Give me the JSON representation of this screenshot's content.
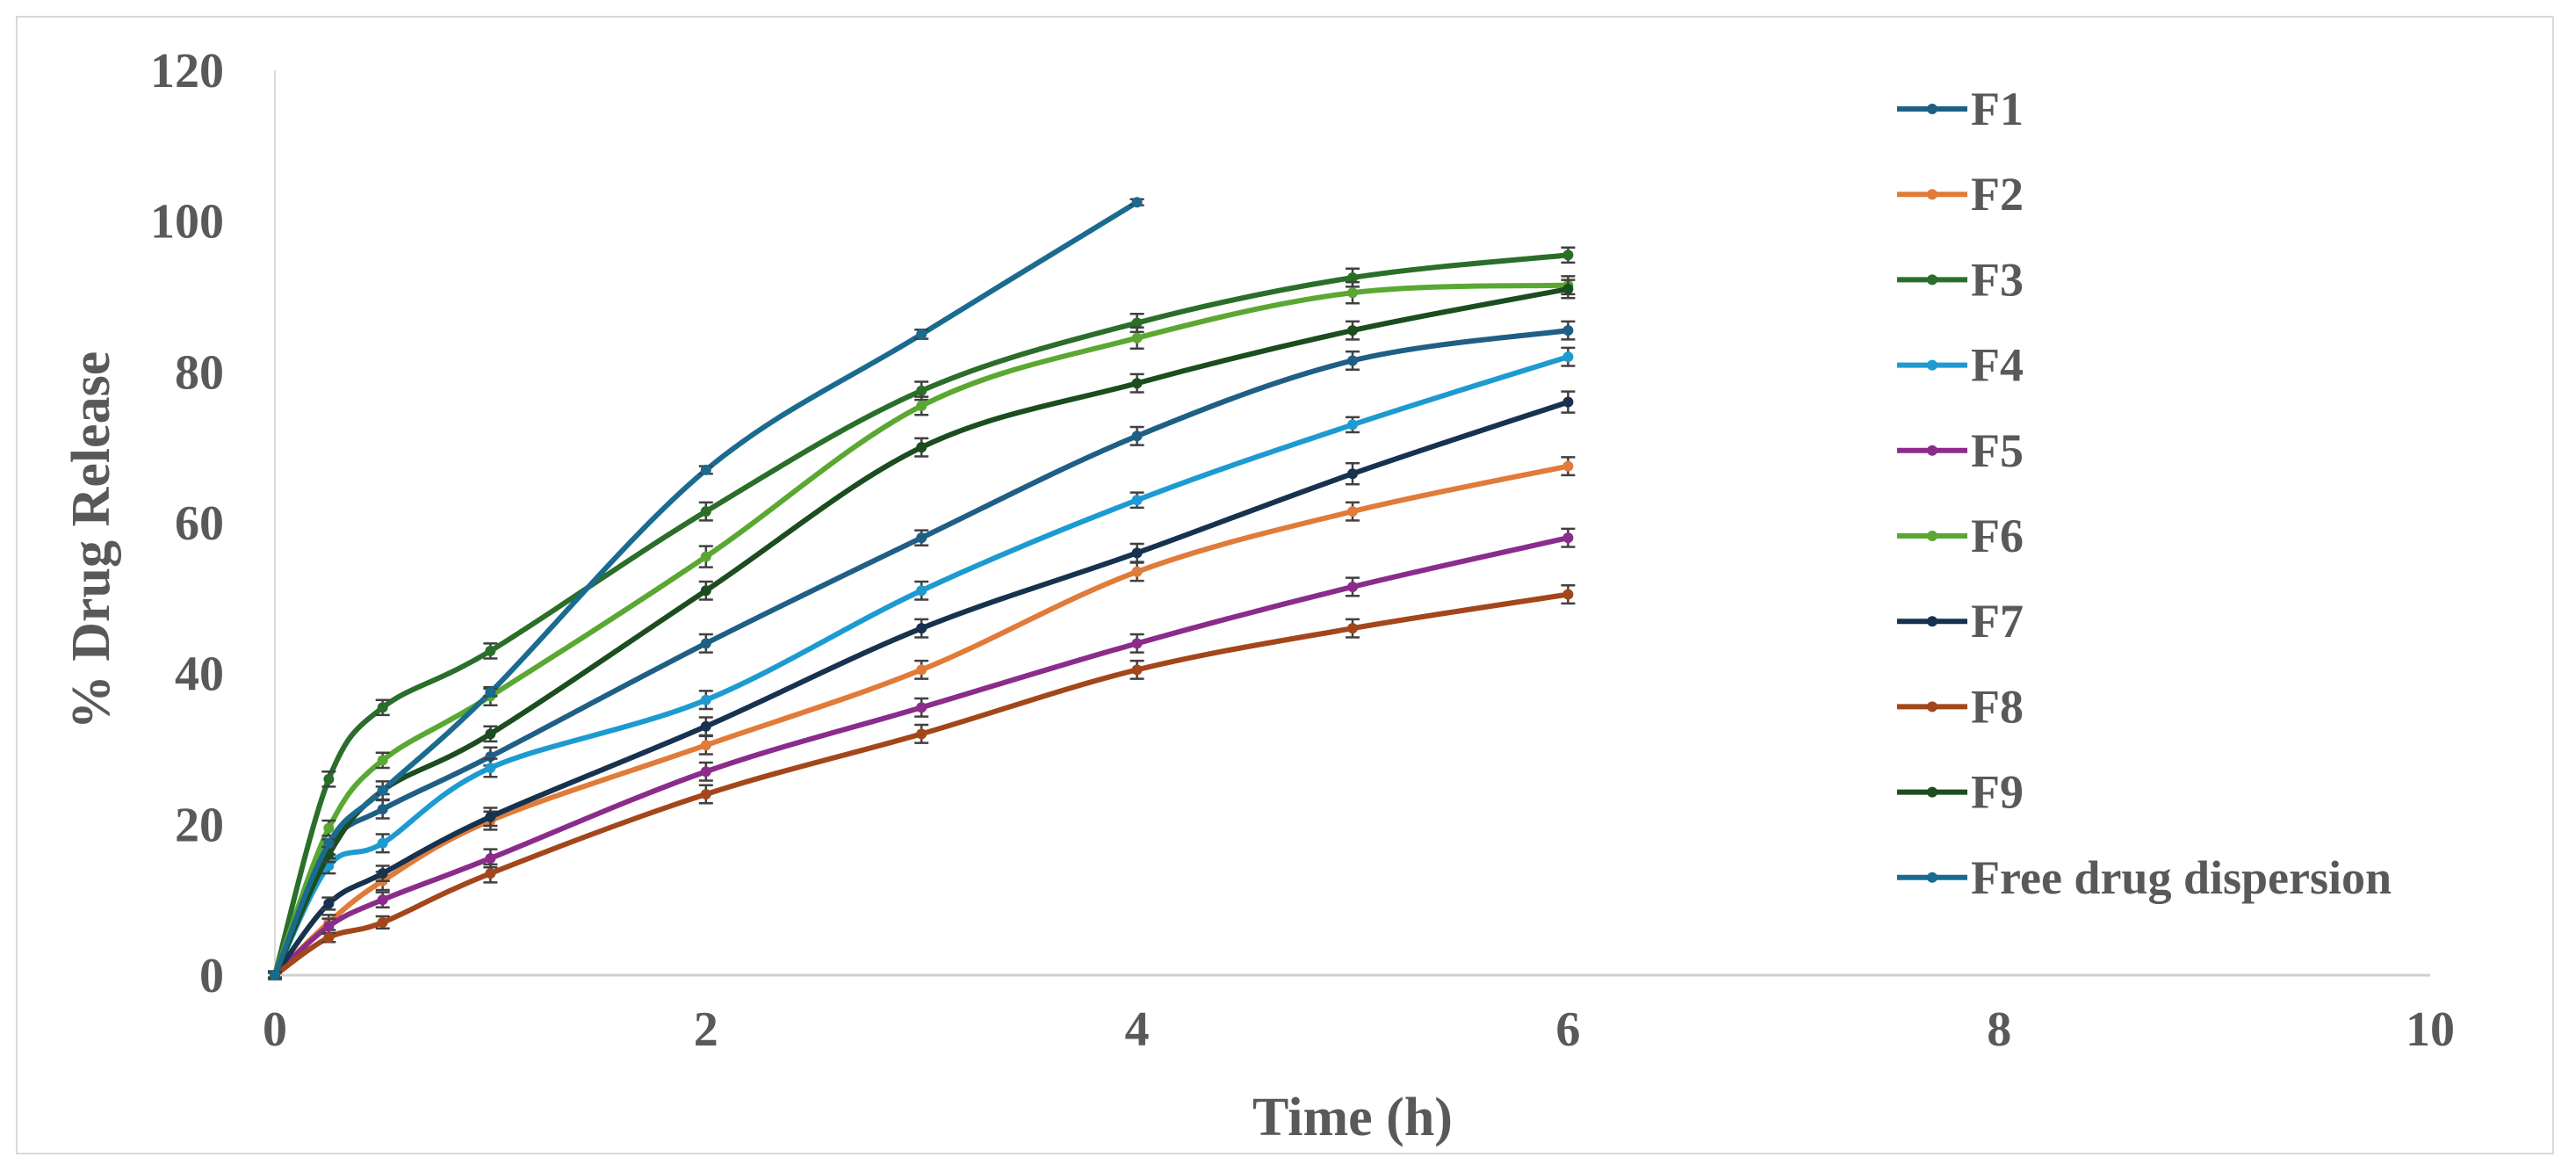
{
  "chart_data": {
    "type": "line",
    "title": "",
    "xlabel": "Time (h)",
    "ylabel": "% Drug Release",
    "xlim": [
      0,
      10
    ],
    "ylim": [
      0,
      120
    ],
    "x_ticks": [
      0,
      2,
      4,
      6,
      8,
      10
    ],
    "y_ticks": [
      0,
      20,
      40,
      60,
      80,
      100,
      120
    ],
    "x_tick_labels": [
      "0",
      "2",
      "4",
      "6",
      "8",
      "10"
    ],
    "y_tick_labels": [
      "0",
      "20",
      "40",
      "60",
      "80",
      "100",
      "120"
    ],
    "grid": false,
    "error_bars": true,
    "legend_position": "right",
    "series": [
      {
        "name": "F1",
        "color": "#1f5f85",
        "x": [
          0,
          0.25,
          0.5,
          1,
          2,
          3,
          4,
          5,
          6
        ],
        "y": [
          0,
          17,
          22,
          29,
          44,
          58,
          71.5,
          81.5,
          85.5
        ],
        "err": [
          0.5,
          1,
          1.2,
          1.2,
          1.2,
          1,
          1.2,
          1.2,
          1.2
        ]
      },
      {
        "name": "F2",
        "color": "#e07b39",
        "x": [
          0,
          0.25,
          0.5,
          1,
          2,
          3,
          4,
          5,
          6
        ],
        "y": [
          0,
          7,
          12.5,
          20.5,
          30.5,
          40.5,
          53.5,
          61.5,
          67.5
        ],
        "err": [
          0.5,
          1,
          1.2,
          1.2,
          1.2,
          1.2,
          1.2,
          1.2,
          1.2
        ]
      },
      {
        "name": "F3",
        "color": "#2a6e2a",
        "x": [
          0,
          0.25,
          0.5,
          1,
          2,
          3,
          4,
          5,
          6
        ],
        "y": [
          0,
          26,
          35.5,
          43,
          61.5,
          77.5,
          86.5,
          92.5,
          95.5
        ],
        "err": [
          0.5,
          1,
          1,
          1,
          1.2,
          1.2,
          1.2,
          1.2,
          1
        ]
      },
      {
        "name": "F4",
        "color": "#1d9bd1",
        "x": [
          0,
          0.25,
          0.5,
          1,
          2,
          3,
          4,
          5,
          6
        ],
        "y": [
          0,
          14.5,
          17.5,
          27.5,
          36.5,
          51,
          63,
          73,
          82
        ],
        "err": [
          0.5,
          1,
          1.2,
          1.2,
          1.2,
          1.2,
          1,
          1,
          1.2
        ]
      },
      {
        "name": "F5",
        "color": "#8b2c8b",
        "x": [
          0,
          0.25,
          0.5,
          1,
          2,
          3,
          4,
          5,
          6
        ],
        "y": [
          0,
          6.5,
          10,
          15.5,
          27,
          35.5,
          44,
          51.5,
          58
        ],
        "err": [
          0.5,
          1,
          1,
          1.2,
          1.2,
          1.2,
          1.2,
          1.2,
          1.2
        ]
      },
      {
        "name": "F6",
        "color": "#5aa832",
        "x": [
          0,
          0.25,
          0.5,
          1,
          2,
          3,
          4,
          5,
          6
        ],
        "y": [
          0,
          19.5,
          28.5,
          37,
          55.5,
          75.5,
          84.5,
          90.5,
          91.5
        ],
        "err": [
          0.5,
          1,
          1,
          1.2,
          1.4,
          1.2,
          1.4,
          1.4,
          1.2
        ]
      },
      {
        "name": "F7",
        "color": "#17324f",
        "x": [
          0,
          0.25,
          0.5,
          1,
          2,
          3,
          4,
          5,
          6
        ],
        "y": [
          0,
          9.5,
          13.5,
          21,
          33,
          46,
          56,
          66.5,
          76
        ],
        "err": [
          0.5,
          0.8,
          1,
          1.2,
          1.2,
          1.2,
          1.2,
          1.4,
          1.4
        ]
      },
      {
        "name": "F8",
        "color": "#a3471b",
        "x": [
          0,
          0.25,
          0.5,
          1,
          2,
          3,
          4,
          5,
          6
        ],
        "y": [
          0,
          5,
          7,
          13.5,
          24,
          32,
          40.5,
          46,
          50.5
        ],
        "err": [
          0.5,
          0.6,
          0.8,
          1.2,
          1.2,
          1.2,
          1.2,
          1.2,
          1.2
        ]
      },
      {
        "name": "F9",
        "color": "#1b4d1f",
        "x": [
          0,
          0.25,
          0.5,
          1,
          2,
          3,
          4,
          5,
          6
        ],
        "y": [
          0,
          16,
          24.5,
          32,
          51,
          70,
          78.5,
          85.5,
          91
        ],
        "err": [
          0.5,
          1,
          1.2,
          1,
          1.2,
          1.2,
          1.2,
          1.2,
          1.2
        ]
      },
      {
        "name": "Free drug dispersion",
        "color": "#1a6b8f",
        "x": [
          0,
          0.25,
          0.5,
          1,
          2,
          3,
          4
        ],
        "y": [
          0,
          17.5,
          24.5,
          37.5,
          67,
          85,
          102.5
        ],
        "err": [
          0.3,
          0.5,
          0.5,
          0.5,
          0.5,
          0.6,
          0.4
        ]
      }
    ]
  }
}
